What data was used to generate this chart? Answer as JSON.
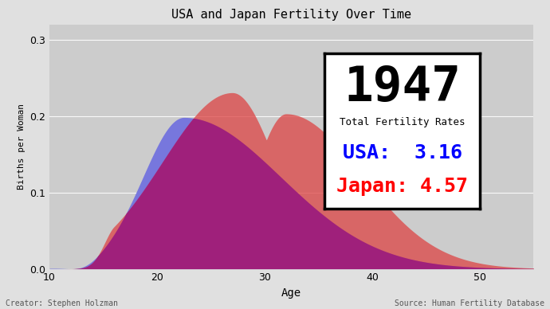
{
  "title": "USA and Japan Fertility Over Time",
  "year": "1947",
  "usa_tfr": "3.16",
  "japan_tfr": "4.57",
  "xlabel": "Age",
  "ylabel": "Births per Woman",
  "xlim": [
    10,
    55
  ],
  "ylim": [
    0,
    0.32
  ],
  "yticks": [
    0.0,
    0.1,
    0.2,
    0.3
  ],
  "xticks": [
    10,
    20,
    30,
    40,
    50
  ],
  "usa_color": "#7777dd",
  "japan_color": "#dd4444",
  "bg_color": "#e0e0e0",
  "plot_bg_color": "#cccccc",
  "creator_text": "Creator: Stephen Holzman",
  "source_text": "Source: Human Fertility Database",
  "infobox_year_size": 44,
  "infobox_tfr_label_size": 9,
  "infobox_value_size": 18
}
